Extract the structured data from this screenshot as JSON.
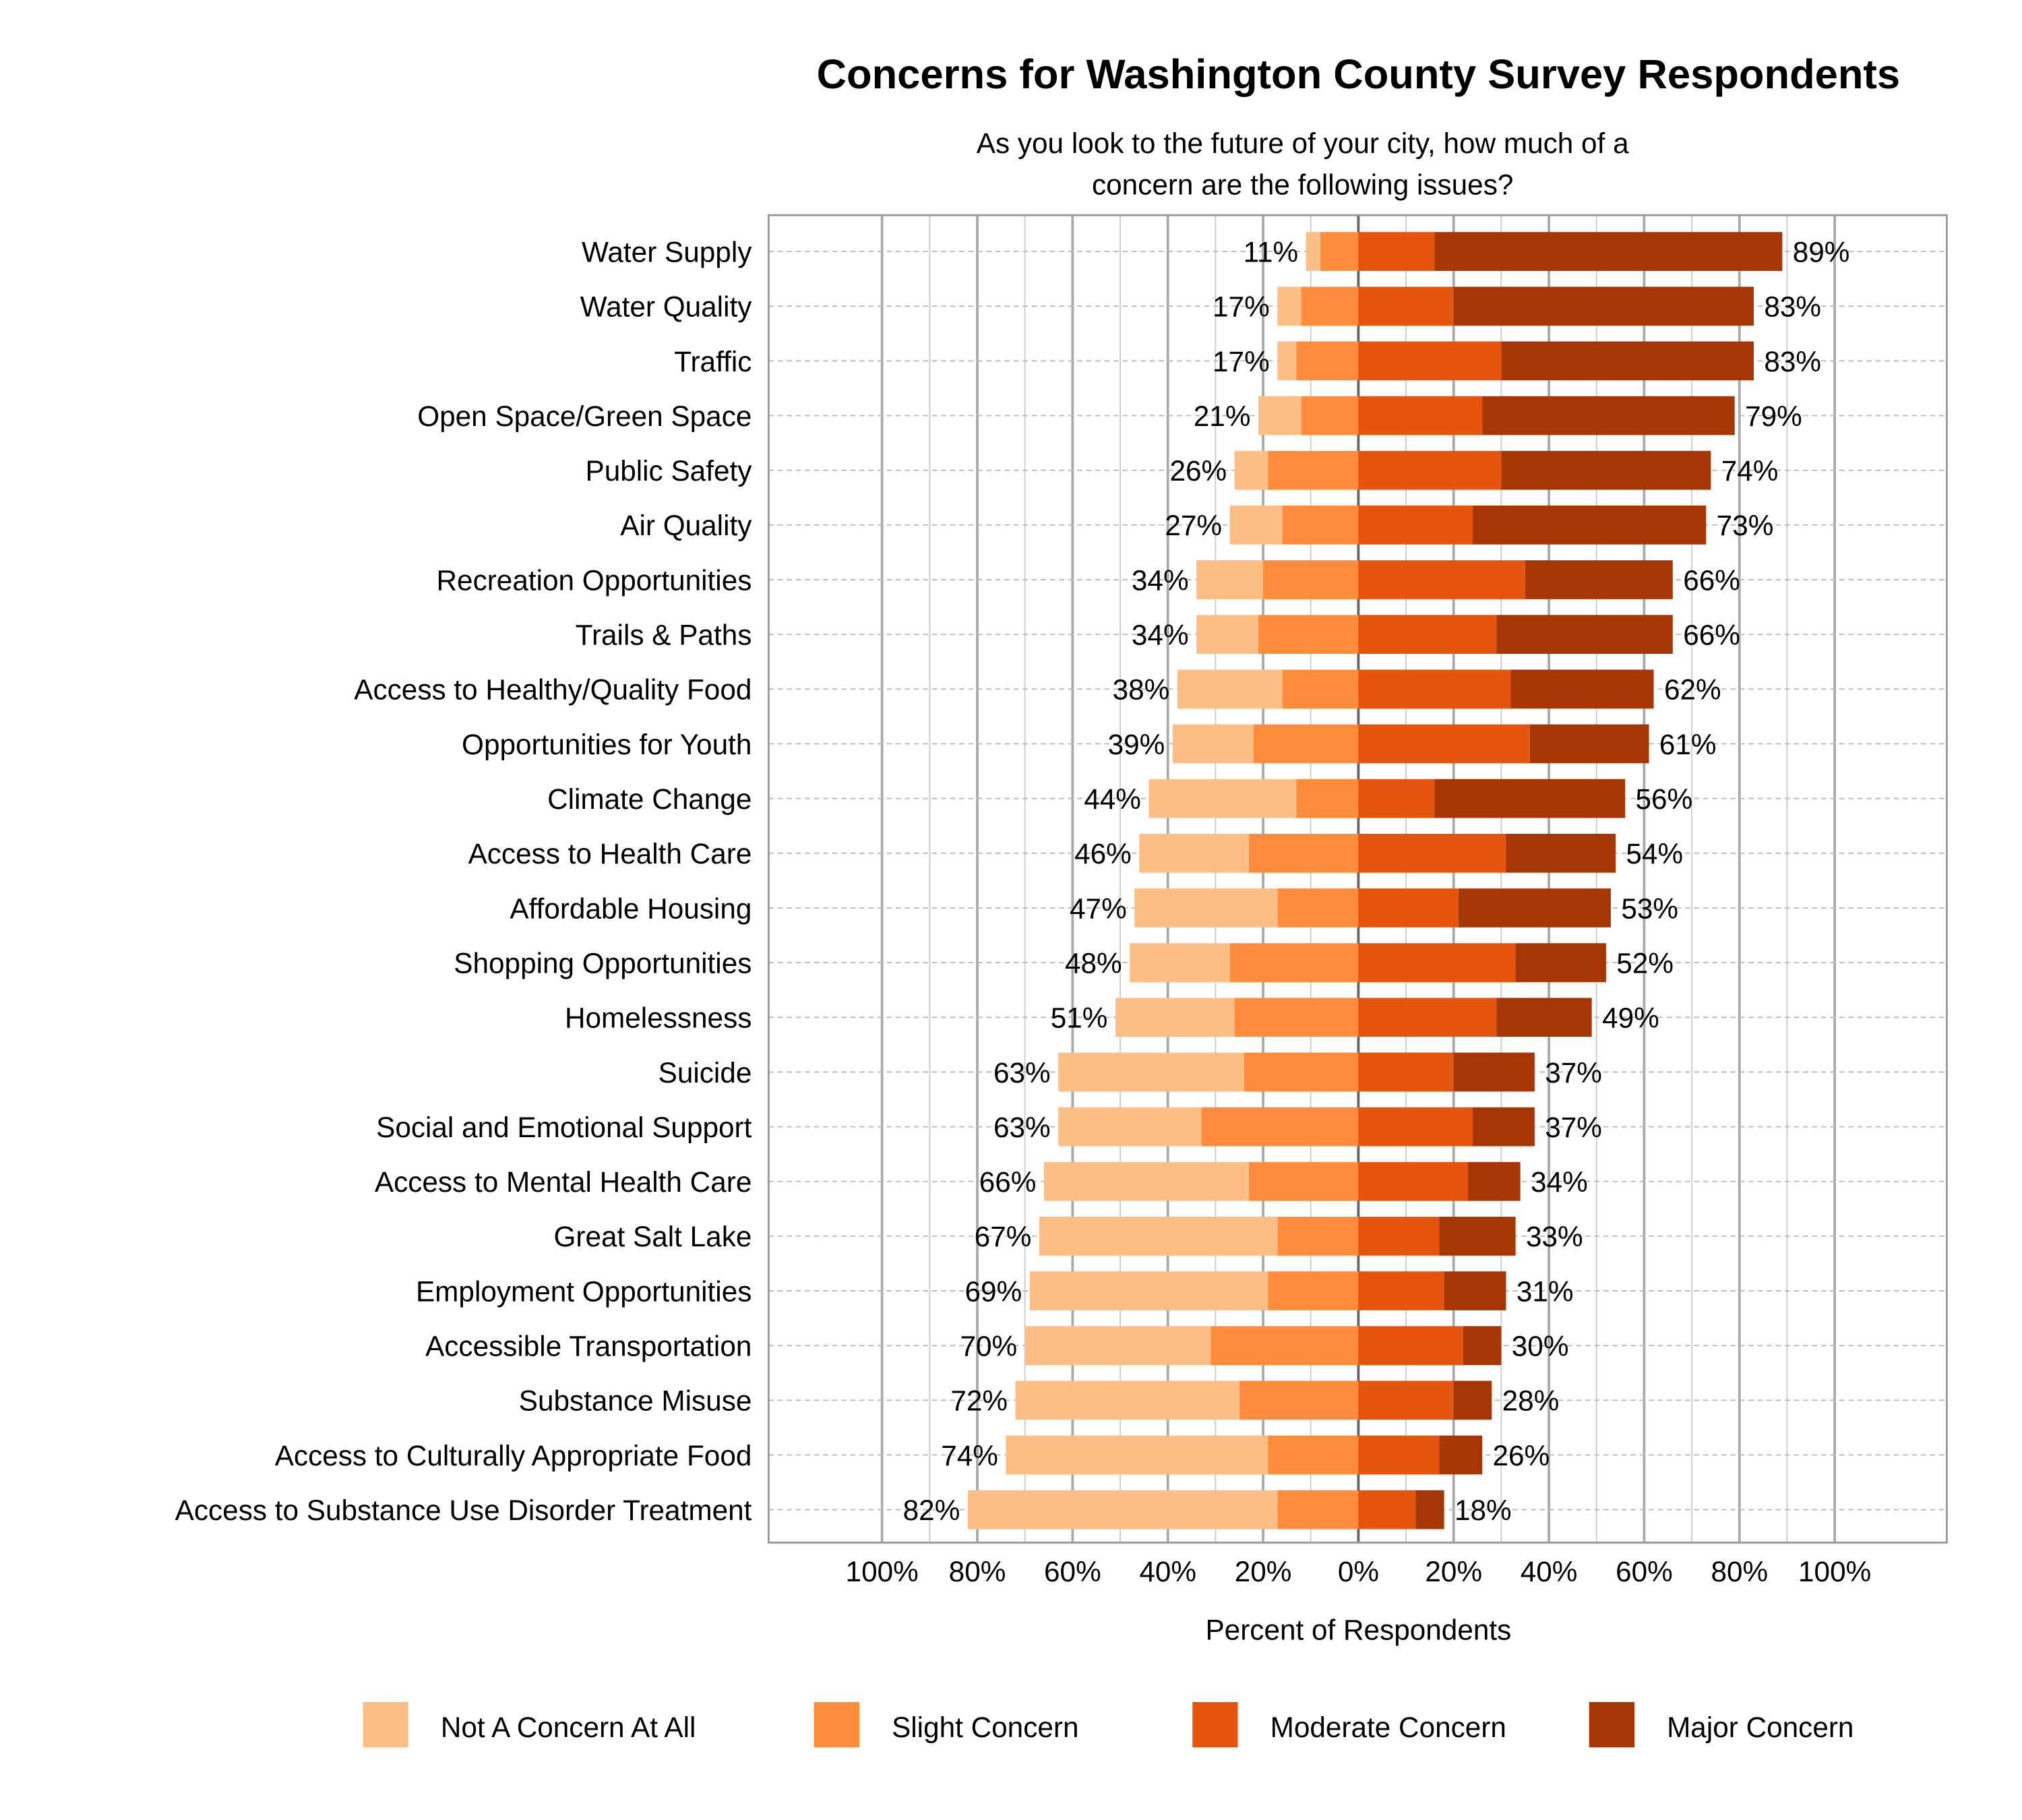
{
  "chart_data": {
    "type": "bar",
    "orientation": "horizontal-diverging-stacked",
    "title": "Concerns for Washington County Survey Respondents",
    "subtitle": [
      "As you look to the future of your city, how much of a",
      "concern are the following issues?"
    ],
    "xlabel": "Percent of Respondents",
    "ylabel": "",
    "xlim": [
      -100,
      100
    ],
    "x_tick_labels": [
      "100%",
      "80%",
      "60%",
      "40%",
      "20%",
      "0%",
      "20%",
      "40%",
      "60%",
      "80%",
      "100%"
    ],
    "grid": true,
    "legend_position": "bottom",
    "categories": [
      "Water Supply",
      "Water Quality",
      "Traffic",
      "Open Space/Green Space",
      "Public Safety",
      "Air Quality",
      "Recreation Opportunities",
      "Trails & Paths",
      "Access to Healthy/Quality Food",
      "Opportunities for Youth",
      "Climate Change",
      "Access to Health Care",
      "Affordable Housing",
      "Shopping Opportunities",
      "Homelessness",
      "Suicide",
      "Social and Emotional Support",
      "Access to Mental Health Care",
      "Great Salt Lake",
      "Employment Opportunities",
      "Accessible Transportation",
      "Substance Misuse",
      "Access to Culturally Appropriate Food",
      "Access to Substance Use Disorder Treatment"
    ],
    "series": [
      {
        "name": "Not A Concern At All",
        "color": "#FDBE85",
        "side": "left",
        "values": [
          3,
          5,
          4,
          9,
          7,
          11,
          14,
          13,
          22,
          17,
          31,
          23,
          30,
          21,
          25,
          39,
          30,
          43,
          50,
          50,
          39,
          47,
          55,
          65
        ]
      },
      {
        "name": "Slight Concern",
        "color": "#FD8D3C",
        "side": "left",
        "values": [
          8,
          12,
          13,
          12,
          19,
          16,
          20,
          21,
          16,
          22,
          13,
          23,
          17,
          27,
          26,
          24,
          33,
          23,
          17,
          19,
          31,
          25,
          19,
          17
        ]
      },
      {
        "name": "Moderate Concern",
        "color": "#E6550D",
        "side": "right",
        "values": [
          16,
          20,
          30,
          26,
          30,
          24,
          35,
          29,
          32,
          36,
          16,
          31,
          21,
          33,
          29,
          20,
          24,
          23,
          17,
          18,
          22,
          20,
          17,
          12
        ]
      },
      {
        "name": "Major Concern",
        "color": "#A63603",
        "side": "right",
        "values": [
          73,
          63,
          53,
          53,
          44,
          49,
          31,
          37,
          30,
          25,
          40,
          23,
          32,
          19,
          20,
          17,
          13,
          11,
          16,
          13,
          8,
          8,
          9,
          6
        ]
      }
    ],
    "left_totals": [
      "11%",
      "17%",
      "17%",
      "21%",
      "26%",
      "27%",
      "34%",
      "34%",
      "38%",
      "39%",
      "44%",
      "46%",
      "47%",
      "48%",
      "51%",
      "63%",
      "63%",
      "66%",
      "67%",
      "69%",
      "70%",
      "72%",
      "74%",
      "82%"
    ],
    "right_totals": [
      "89%",
      "83%",
      "83%",
      "79%",
      "74%",
      "73%",
      "66%",
      "66%",
      "62%",
      "61%",
      "56%",
      "54%",
      "53%",
      "52%",
      "49%",
      "37%",
      "37%",
      "34%",
      "33%",
      "31%",
      "30%",
      "28%",
      "26%",
      "18%"
    ]
  }
}
